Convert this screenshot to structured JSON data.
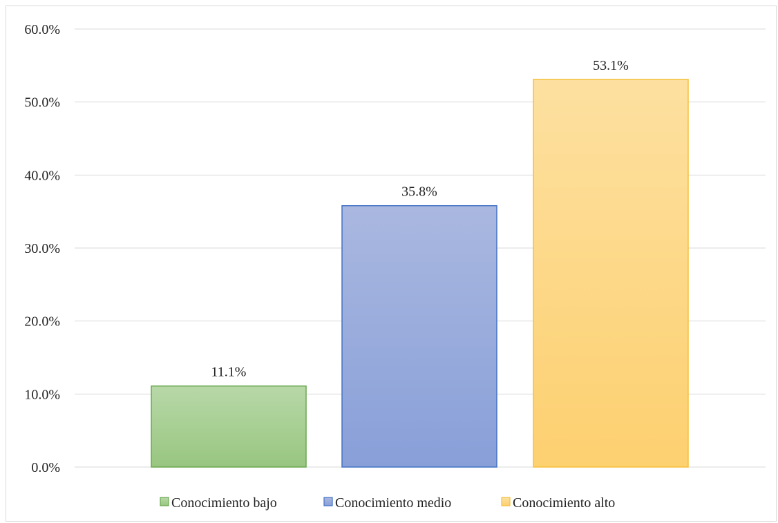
{
  "chart_data": {
    "type": "bar",
    "categories": [
      "Conocimiento bajo",
      "Conocimiento medio",
      "Conocimiento alto"
    ],
    "values": [
      11.1,
      35.8,
      53.1
    ],
    "value_labels": [
      "11.1%",
      "35.8%",
      "53.1%"
    ],
    "y_ticks": [
      "0.0%",
      "10.0%",
      "20.0%",
      "30.0%",
      "40.0%",
      "50.0%",
      "60.0%"
    ],
    "ylim": [
      0,
      60
    ],
    "grid": true,
    "legend": "bottom",
    "legend_entries": [
      "Conocimiento bajo",
      "Conocimiento medio",
      "Conocimiento alto"
    ],
    "colors": {
      "Conocimiento bajo": {
        "top": "#b8d8a8",
        "bottom": "#98c680",
        "border": "#6aa84f"
      },
      "Conocimiento medio": {
        "top": "#aab8e0",
        "bottom": "#889fd8",
        "border": "#4472c4"
      },
      "Conocimiento alto": {
        "top": "#fde0a0",
        "bottom": "#fdd070",
        "border": "#f5bf3c"
      }
    }
  }
}
